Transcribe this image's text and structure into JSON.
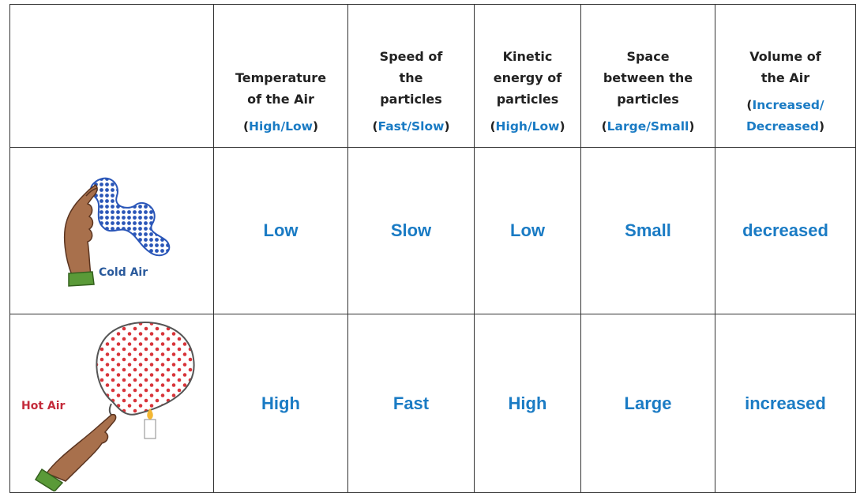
{
  "table": {
    "header": [
      {
        "title": "Temperature\nof the Air",
        "hint": "(High/Low)"
      },
      {
        "title": "Speed of\nthe\nparticles",
        "hint": "(Fast/Slow)"
      },
      {
        "title": "Kinetic\nenergy of\nparticles",
        "hint": "(High/Low)"
      },
      {
        "title": "Space\nbetween the\nparticles",
        "hint": "(Large/Small)"
      },
      {
        "title": "Volume of\nthe Air",
        "hint": "(Increased/\nDecreased)"
      }
    ],
    "rows": [
      {
        "label": "Cold Air",
        "cells": [
          "Low",
          "Slow",
          "Low",
          "Small",
          "decreased"
        ]
      },
      {
        "label": "Hot Air",
        "cells": [
          "High",
          "Fast",
          "High",
          "Large",
          "increased"
        ]
      }
    ]
  }
}
